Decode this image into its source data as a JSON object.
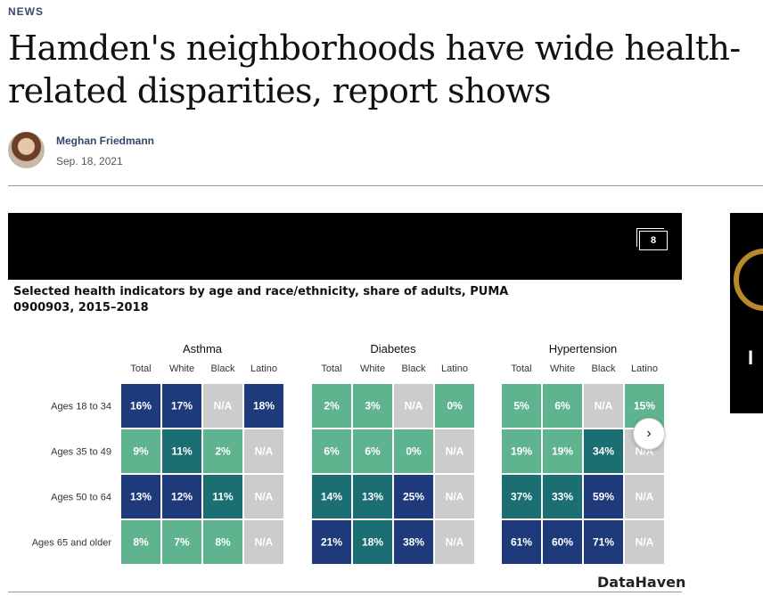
{
  "article": {
    "section": "NEWS",
    "headline": "Hamden's neighborhoods have wide health-related disparities, report shows",
    "author": "Meghan Friedmann",
    "date": "Sep. 18, 2021"
  },
  "gallery": {
    "photo_count": "8",
    "next_label": "›",
    "brand": "DataHaven",
    "side_ad_letter": "I"
  },
  "chart_data": {
    "type": "heatmap",
    "title": "Selected health indicators by age and race/ethnicity, share of adults, PUMA 0900903, 2015–2018",
    "rows": [
      "Ages 18 to 34",
      "Ages 35 to 49",
      "Ages 50 to 64",
      "Ages 65 and older"
    ],
    "columns": [
      "Total",
      "White",
      "Black",
      "Latino"
    ],
    "panels": [
      {
        "name": "Asthma",
        "values": [
          [
            16,
            17,
            null,
            18
          ],
          [
            9,
            11,
            2,
            null
          ],
          [
            13,
            12,
            11,
            null
          ],
          [
            8,
            7,
            8,
            null
          ]
        ],
        "labels": [
          [
            "16%",
            "17%",
            "N/A",
            "18%"
          ],
          [
            "9%",
            "11%",
            "2%",
            "N/A"
          ],
          [
            "13%",
            "12%",
            "11%",
            "N/A"
          ],
          [
            "8%",
            "7%",
            "8%",
            "N/A"
          ]
        ]
      },
      {
        "name": "Diabetes",
        "values": [
          [
            2,
            3,
            null,
            0
          ],
          [
            6,
            6,
            0,
            null
          ],
          [
            14,
            13,
            25,
            null
          ],
          [
            21,
            18,
            38,
            null
          ]
        ],
        "labels": [
          [
            "2%",
            "3%",
            "N/A",
            "0%"
          ],
          [
            "6%",
            "6%",
            "0%",
            "N/A"
          ],
          [
            "14%",
            "13%",
            "25%",
            "N/A"
          ],
          [
            "21%",
            "18%",
            "38%",
            "N/A"
          ]
        ]
      },
      {
        "name": "Hypertension",
        "values": [
          [
            5,
            6,
            null,
            15
          ],
          [
            19,
            19,
            34,
            null
          ],
          [
            37,
            33,
            59,
            null
          ],
          [
            61,
            60,
            71,
            null
          ]
        ],
        "labels": [
          [
            "5%",
            "6%",
            "N/A",
            "15%"
          ],
          [
            "19%",
            "19%",
            "34%",
            "N/A"
          ],
          [
            "37%",
            "33%",
            "59%",
            "N/A"
          ],
          [
            "61%",
            "60%",
            "71%",
            "N/A"
          ]
        ]
      }
    ],
    "colors": {
      "light": "#5fb38f",
      "mid": "#1b6f72",
      "dark": "#1e3a7b",
      "na": "#cccccc",
      "text": "#ffffff"
    }
  }
}
